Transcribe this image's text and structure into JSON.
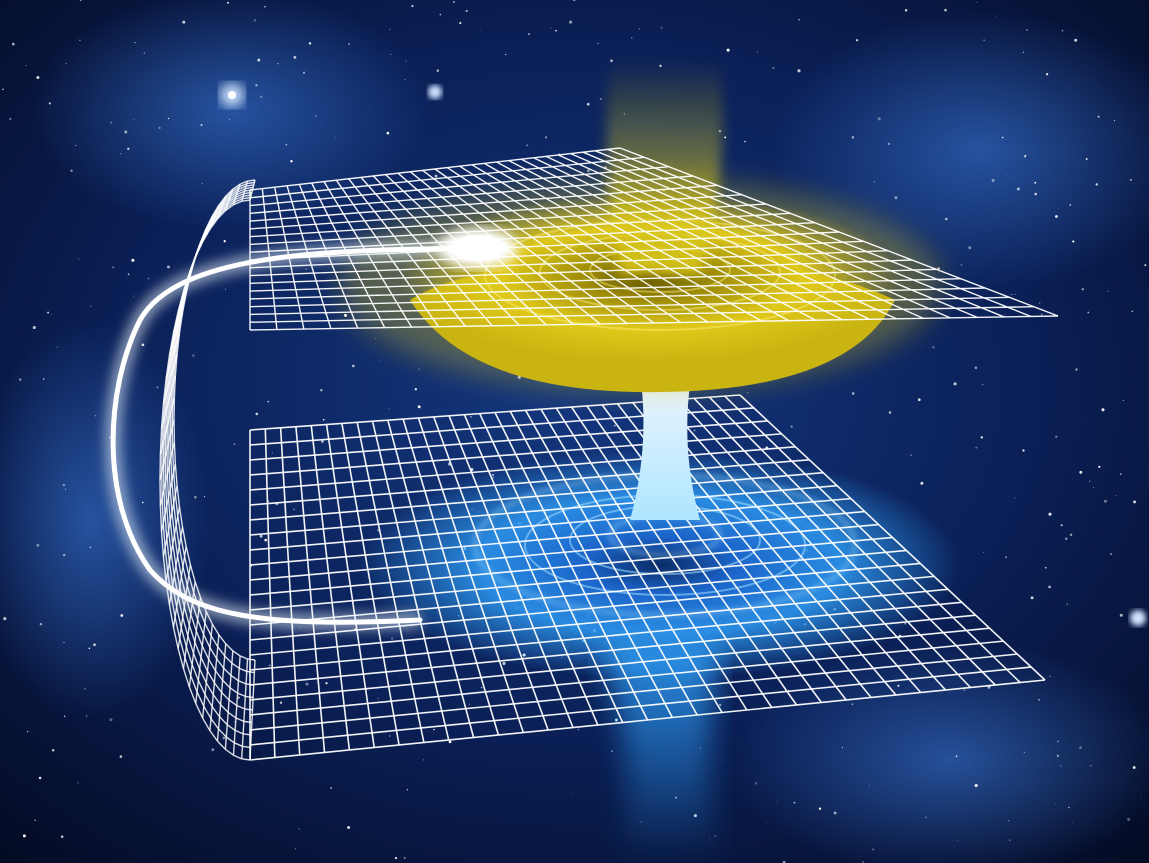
{
  "scene": {
    "subject": "wormhole-illustration",
    "palette": {
      "space_deep": "#040a22",
      "space_mid": "#0d2a66",
      "nebula": "#2a5fc4",
      "grid_line": "#ffffff",
      "upper_glow": "#e8d21a",
      "upper_glow_dark": "#8a7a05",
      "lower_glow": "#2e9cf5",
      "lower_glow_light": "#aee6ff",
      "light_trail": "#ffffff"
    },
    "icons": {
      "light_trail": "light-trail",
      "star": "star"
    }
  }
}
